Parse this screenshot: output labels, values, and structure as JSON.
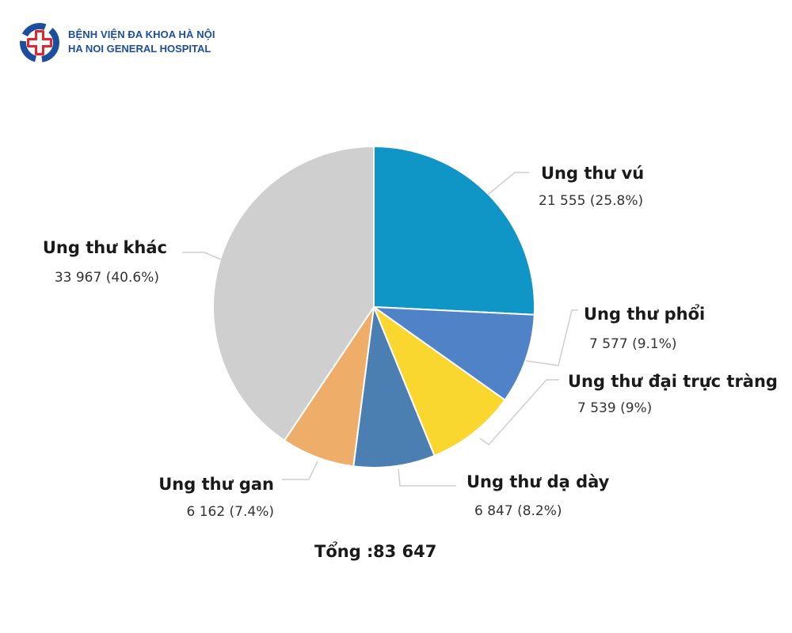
{
  "header": {
    "name_vi": "BỆNH VIỆN ĐA KHOA HÀ NỘI",
    "name_en": "HA NOI GENERAL HOSPITAL",
    "logo_icon": "medical-cross-icon",
    "brand_color": "#1d4e9e",
    "cross_color": "#e3262e"
  },
  "chart_data": {
    "type": "pie",
    "title": "",
    "start": "12 o'clock, clockwise",
    "slices": [
      {
        "label": "Ung thư vú",
        "value": 21555,
        "value_text": "21 555 (25.8%)",
        "percent": 25.8,
        "color": "#0f95c6"
      },
      {
        "label": "Ung thư phổi",
        "value": 7577,
        "value_text": "7 577 (9.1%)",
        "percent": 9.1,
        "color": "#4f82c6"
      },
      {
        "label": "Ung thư đại trực tràng",
        "value": 7539,
        "value_text": "7 539 (9%)",
        "percent": 9.0,
        "color": "#f9d72f"
      },
      {
        "label": "Ung thư dạ dày",
        "value": 6847,
        "value_text": "6 847 (8.2%)",
        "percent": 8.2,
        "color": "#4b7fb2"
      },
      {
        "label": "Ung thư gan",
        "value": 6162,
        "value_text": "6 162 (7.4%)",
        "percent": 7.4,
        "color": "#eeae6a"
      },
      {
        "label": "Ung thư khác",
        "value": 33967,
        "value_text": "33 967 (40.6%)",
        "percent": 40.6,
        "color": "#cfcfcf"
      }
    ],
    "total_label": "Tổng :",
    "total_value": "83 647",
    "total": 83647
  }
}
